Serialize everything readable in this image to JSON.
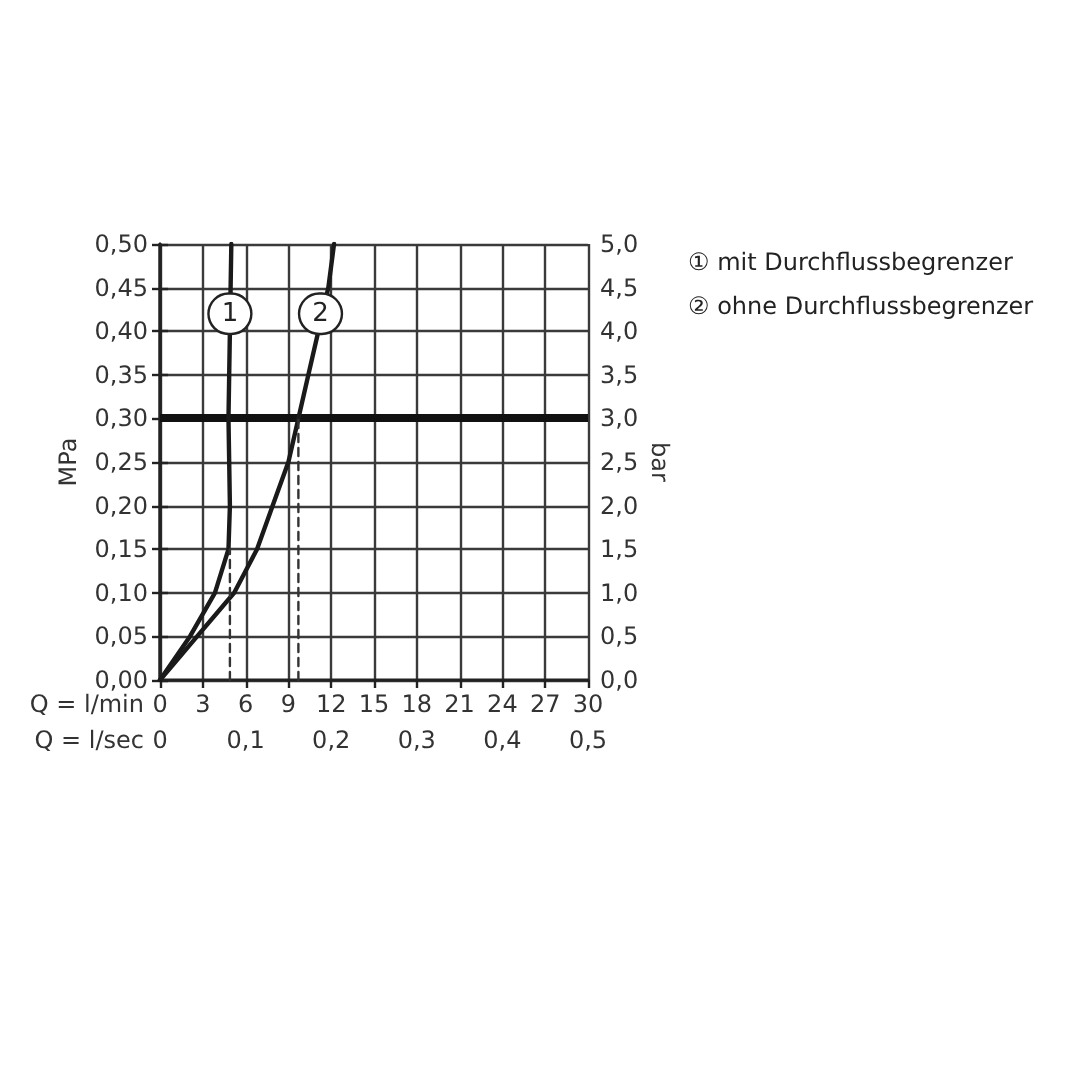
{
  "chart_data": {
    "type": "line",
    "xlabel": "Q = l/min",
    "x2label": "Q = l/sec",
    "ylabel": "MPa",
    "y2label": "bar",
    "xlim": [
      0,
      30
    ],
    "xticks": [
      0,
      3,
      6,
      9,
      12,
      15,
      18,
      21,
      24,
      27,
      30
    ],
    "x2lim": [
      0,
      0.5
    ],
    "x2ticks": [
      0,
      {
        "value": 0.1,
        "label": "0,1"
      },
      {
        "value": 0.2,
        "label": "0,2"
      },
      {
        "value": 0.3,
        "label": "0,3"
      },
      {
        "value": 0.4,
        "label": "0,4"
      },
      {
        "value": 0.5,
        "label": "0,5"
      }
    ],
    "ylim": [
      0,
      0.5
    ],
    "yticks": [
      {
        "value": 0,
        "label": "0,00"
      },
      {
        "value": 0.05,
        "label": "0,05"
      },
      {
        "value": 0.1,
        "label": "0,10"
      },
      {
        "value": 0.15,
        "label": "0,15"
      },
      {
        "value": 0.2,
        "label": "0,20"
      },
      {
        "value": 0.25,
        "label": "0,25"
      },
      {
        "value": 0.3,
        "label": "0,30"
      },
      {
        "value": 0.35,
        "label": "0,35"
      },
      {
        "value": 0.4,
        "label": "0,40"
      },
      {
        "value": 0.45,
        "label": "0,45"
      },
      {
        "value": 0.5,
        "label": "0,50"
      }
    ],
    "y2lim": [
      0,
      5
    ],
    "y2ticks": [
      {
        "value": 0,
        "label": "0,0"
      },
      {
        "value": 0.5,
        "label": "0,5"
      },
      {
        "value": 1,
        "label": "1,0"
      },
      {
        "value": 1.5,
        "label": "1,5"
      },
      {
        "value": 2,
        "label": "2,0"
      },
      {
        "value": 2.5,
        "label": "2,5"
      },
      {
        "value": 3,
        "label": "3,0"
      },
      {
        "value": 3.5,
        "label": "3,5"
      },
      {
        "value": 4,
        "label": "4,0"
      },
      {
        "value": 4.5,
        "label": "4,5"
      },
      {
        "value": 5,
        "label": "5,0"
      }
    ],
    "series": [
      {
        "name": "① mit Durchflussbegrenzer",
        "color": "#1a1a1a",
        "x": [
          0,
          2.1,
          3.85,
          4.8,
          4.9,
          4.85,
          4.8,
          4.85,
          4.9,
          4.95,
          5.0
        ],
        "values": [
          0,
          0.05,
          0.1,
          0.15,
          0.2,
          0.25,
          0.3,
          0.35,
          0.4,
          0.45,
          0.5
        ]
      },
      {
        "name": "② ohne Durchflussbegrenzer",
        "color": "#1a1a1a",
        "x": [
          0,
          2.6,
          5.2,
          6.8,
          7.9,
          9.0,
          9.7,
          10.4,
          11.1,
          11.8,
          12.2
        ],
        "values": [
          0,
          0.05,
          0.1,
          0.15,
          0.2,
          0.25,
          0.3,
          0.35,
          0.4,
          0.45,
          0.5
        ]
      },
      {
        "color": "#333333",
        "line_style": "dashed",
        "x": [
          4.9,
          4.9
        ],
        "values": [
          0,
          0.15
        ]
      },
      {
        "color": "#333333",
        "line_style": "dashed",
        "x": [
          9.7,
          9.7
        ],
        "values": [
          0,
          0.3
        ]
      }
    ],
    "ref_lines": [
      {
        "axis": "y",
        "value": 0.3,
        "color": "#111111"
      }
    ],
    "annotations": [
      {
        "text": "1",
        "x": 4.9,
        "y": 0.42
      },
      {
        "text": "2",
        "x": 11.25,
        "y": 0.42
      }
    ],
    "grid": true,
    "legend": "top right",
    "marker": "none",
    "line_style": "solid"
  }
}
